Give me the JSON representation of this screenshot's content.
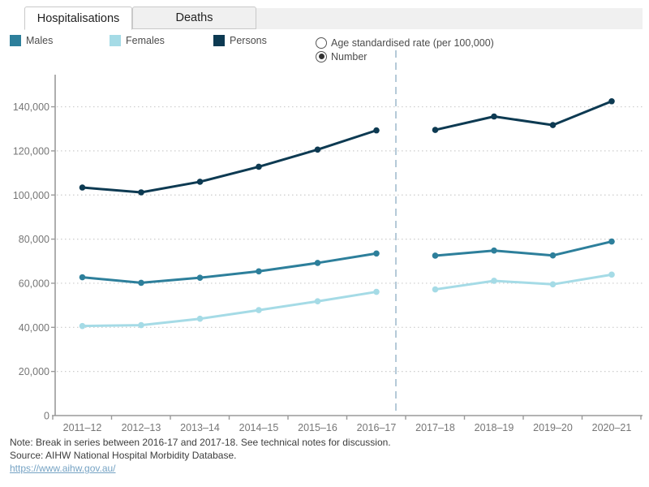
{
  "tabs": [
    {
      "label": "Hospitalisations",
      "active": true
    },
    {
      "label": "Deaths",
      "active": false
    }
  ],
  "legend": {
    "items": [
      {
        "label": "Males",
        "color": "#2d7f9b"
      },
      {
        "label": "Females",
        "color": "#a5dbe6"
      },
      {
        "label": "Persons",
        "color": "#0d3a52"
      }
    ]
  },
  "controls": {
    "options": [
      {
        "label": "Age standardised rate (per 100,000)",
        "selected": false
      },
      {
        "label": "Number",
        "selected": true
      }
    ]
  },
  "chart_data": {
    "type": "line",
    "title": "",
    "categories": [
      "2011–12",
      "2012–13",
      "2013–14",
      "2014–15",
      "2015–16",
      "2016–17",
      "2017–18",
      "2018–19",
      "2019–20",
      "2020–21"
    ],
    "series": [
      {
        "name": "Males",
        "color": "#2d7f9b",
        "values": [
          62700,
          60200,
          62500,
          65400,
          69200,
          73500,
          72500,
          74800,
          72600,
          78900
        ]
      },
      {
        "name": "Females",
        "color": "#a5dbe6",
        "values": [
          40600,
          41000,
          43900,
          47800,
          51800,
          56100,
          57200,
          61100,
          59500,
          63900
        ]
      },
      {
        "name": "Persons",
        "color": "#0d3a52",
        "values": [
          103400,
          101200,
          106000,
          112800,
          120600,
          129300,
          129500,
          135600,
          131700,
          142500
        ]
      }
    ],
    "ylim": [
      0,
      150000
    ],
    "ytick_step": 20000,
    "ytick_max": 140000,
    "xlabel": "",
    "ylabel": "",
    "legend_position": "top",
    "grid": "horizontal-dotted",
    "break_after_index": 5,
    "break_note": "dashed vertical break line between 2016-17 and 2017-18",
    "selected_measure": "Number"
  },
  "notes": {
    "note": "Note: Break in series between 2016-17 and 2017-18. See technical notes for discussion.",
    "source": "Source: AIHW National Hospital Morbidity Database.",
    "link": "https://www.aihw.gov.au/"
  },
  "colors": {
    "axis": "#9a9a9a",
    "grid": "#cccccc",
    "tick_label": "#767676",
    "break_line": "#b5cad8",
    "tab_bar_bg": "#f0f0f0",
    "link": "#76a3c4"
  }
}
